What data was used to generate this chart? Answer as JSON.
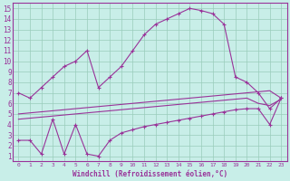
{
  "bg_color": "#c8eee8",
  "line_color": "#993399",
  "grid_color": "#99ccbb",
  "xlabel": "Windchill (Refroidissement éolien,°C)",
  "xlim": [
    -0.5,
    23.5
  ],
  "ylim": [
    0.5,
    15.5
  ],
  "xticks": [
    0,
    1,
    2,
    3,
    4,
    5,
    6,
    7,
    8,
    9,
    10,
    11,
    12,
    13,
    14,
    15,
    16,
    17,
    18,
    19,
    20,
    21,
    22,
    23
  ],
  "yticks": [
    1,
    2,
    3,
    4,
    5,
    6,
    7,
    8,
    9,
    10,
    11,
    12,
    13,
    14,
    15
  ],
  "line1_x": [
    0,
    1,
    2,
    3,
    4,
    5,
    6,
    7,
    8,
    9,
    10,
    11,
    12,
    13,
    14,
    15,
    16,
    17,
    18,
    19,
    20,
    21,
    22,
    23
  ],
  "line1_y": [
    7.0,
    6.5,
    7.5,
    8.5,
    9.5,
    10.0,
    11.0,
    7.5,
    8.5,
    9.5,
    11.0,
    12.5,
    13.5,
    14.0,
    14.5,
    15.0,
    14.8,
    14.5,
    13.5,
    8.5,
    8.0,
    7.0,
    5.5,
    6.5
  ],
  "line2_x": [
    0,
    1,
    2,
    3,
    4,
    5,
    6,
    7,
    8,
    9,
    10,
    11,
    12,
    13,
    14,
    15,
    16,
    17,
    18,
    19,
    20,
    21,
    22,
    23
  ],
  "line2_y": [
    5.0,
    5.1,
    5.2,
    5.3,
    5.4,
    5.5,
    5.6,
    5.7,
    5.8,
    5.9,
    6.0,
    6.1,
    6.2,
    6.3,
    6.4,
    6.5,
    6.6,
    6.7,
    6.8,
    6.9,
    7.0,
    7.1,
    7.2,
    6.5
  ],
  "line3_x": [
    0,
    1,
    2,
    3,
    4,
    5,
    6,
    7,
    8,
    9,
    10,
    11,
    12,
    13,
    14,
    15,
    16,
    17,
    18,
    19,
    20,
    21,
    22,
    23
  ],
  "line3_y": [
    4.5,
    4.6,
    4.7,
    4.8,
    4.9,
    5.0,
    5.1,
    5.2,
    5.3,
    5.4,
    5.5,
    5.6,
    5.7,
    5.8,
    5.9,
    6.0,
    6.1,
    6.2,
    6.3,
    6.4,
    6.5,
    6.0,
    5.8,
    6.4
  ],
  "line4_x": [
    0,
    1,
    2,
    3,
    4,
    5,
    6,
    7,
    8,
    9,
    10,
    11,
    12,
    13,
    14,
    15,
    16,
    17,
    18,
    19,
    20,
    21,
    22,
    23
  ],
  "line4_y": [
    2.5,
    2.5,
    1.2,
    4.5,
    1.2,
    4.0,
    1.2,
    1.0,
    2.5,
    3.2,
    3.5,
    3.8,
    4.0,
    4.2,
    4.4,
    4.6,
    4.8,
    5.0,
    5.2,
    5.4,
    5.5,
    5.5,
    4.0,
    6.5
  ]
}
